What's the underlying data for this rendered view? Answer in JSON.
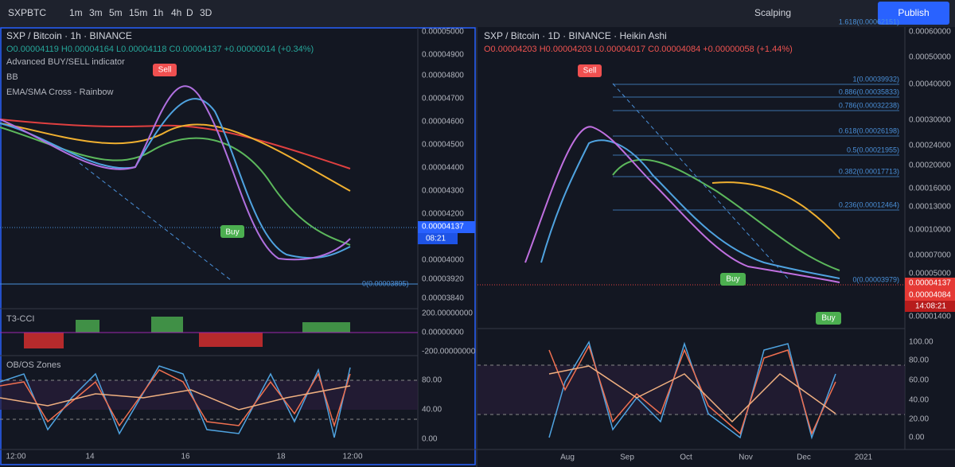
{
  "toolbar": {
    "symbol": "SXPBTC",
    "intervals": [
      "1m",
      "3m",
      "5m",
      "15m",
      "1h",
      "4h",
      "D",
      "3D"
    ],
    "layout": "Scalping",
    "publish": "Publish"
  },
  "left": {
    "title": "SXP / Bitcoin · 1h · BINANCE",
    "ohlc": "O0.00004119 H0.00004164 L0.00004118 C0.00004137 +0.00000014 (+0.34%)",
    "indicators": [
      "Advanced BUY/SELL indicator",
      "BB",
      "EMA/SMA Cross - Rainbow"
    ],
    "sell": "Sell",
    "buy": "Buy",
    "fib_zero": "0(0.00003895)",
    "price_axis": [
      "0.00005000",
      "0.00004900",
      "0.00004800",
      "0.00004700",
      "0.00004600",
      "0.00004500",
      "0.00004400",
      "0.00004300",
      "0.00004200",
      "0.00004000",
      "0.00003920",
      "0.00003840"
    ],
    "last_price": "0.00004137",
    "countdown": "08:21",
    "cci": {
      "title": "T3-CCI",
      "axis": [
        "200.00000000",
        "0.00000000",
        "-200.00000000"
      ]
    },
    "obos": {
      "title": "OB/OS Zones",
      "axis": [
        "80.00",
        "40.00",
        "0.00"
      ]
    },
    "time_axis": [
      "12:00",
      "14",
      "16",
      "18",
      "12:00"
    ]
  },
  "right": {
    "title": "SXP / Bitcoin · 1D · BINANCE · Heikin Ashi",
    "ohlc": "O0.00004203 H0.00004203 L0.00004017 C0.00004084 +0.00000058 (+1.44%)",
    "sell": "Sell",
    "buy": "Buy",
    "fib": [
      "1.618(0.00062151)",
      "1(0.00039932)",
      "0.886(0.00035833)",
      "0.786(0.00032238)",
      "0.618(0.00026198)",
      "0.5(0.00021955)",
      "0.382(0.00017713)",
      "0.236(0.00012464)",
      "0(0.00003979)"
    ],
    "price_axis": [
      "0.00060000",
      "0.00050000",
      "0.00040000",
      "0.00030000",
      "0.00024000",
      "0.00020000",
      "0.00016000",
      "0.00013000",
      "0.00010000",
      "0.00007000",
      "0.00005000",
      "0.00001400"
    ],
    "last_prices": [
      "0.00004137",
      "0.00004084"
    ],
    "countdown": "14:08:21",
    "osc_axis": [
      "100.00",
      "80.00",
      "60.00",
      "40.00",
      "20.00",
      "0.00"
    ],
    "time_axis": [
      "Aug",
      "Sep",
      "Oct",
      "Nov",
      "Dec",
      "2021"
    ]
  }
}
